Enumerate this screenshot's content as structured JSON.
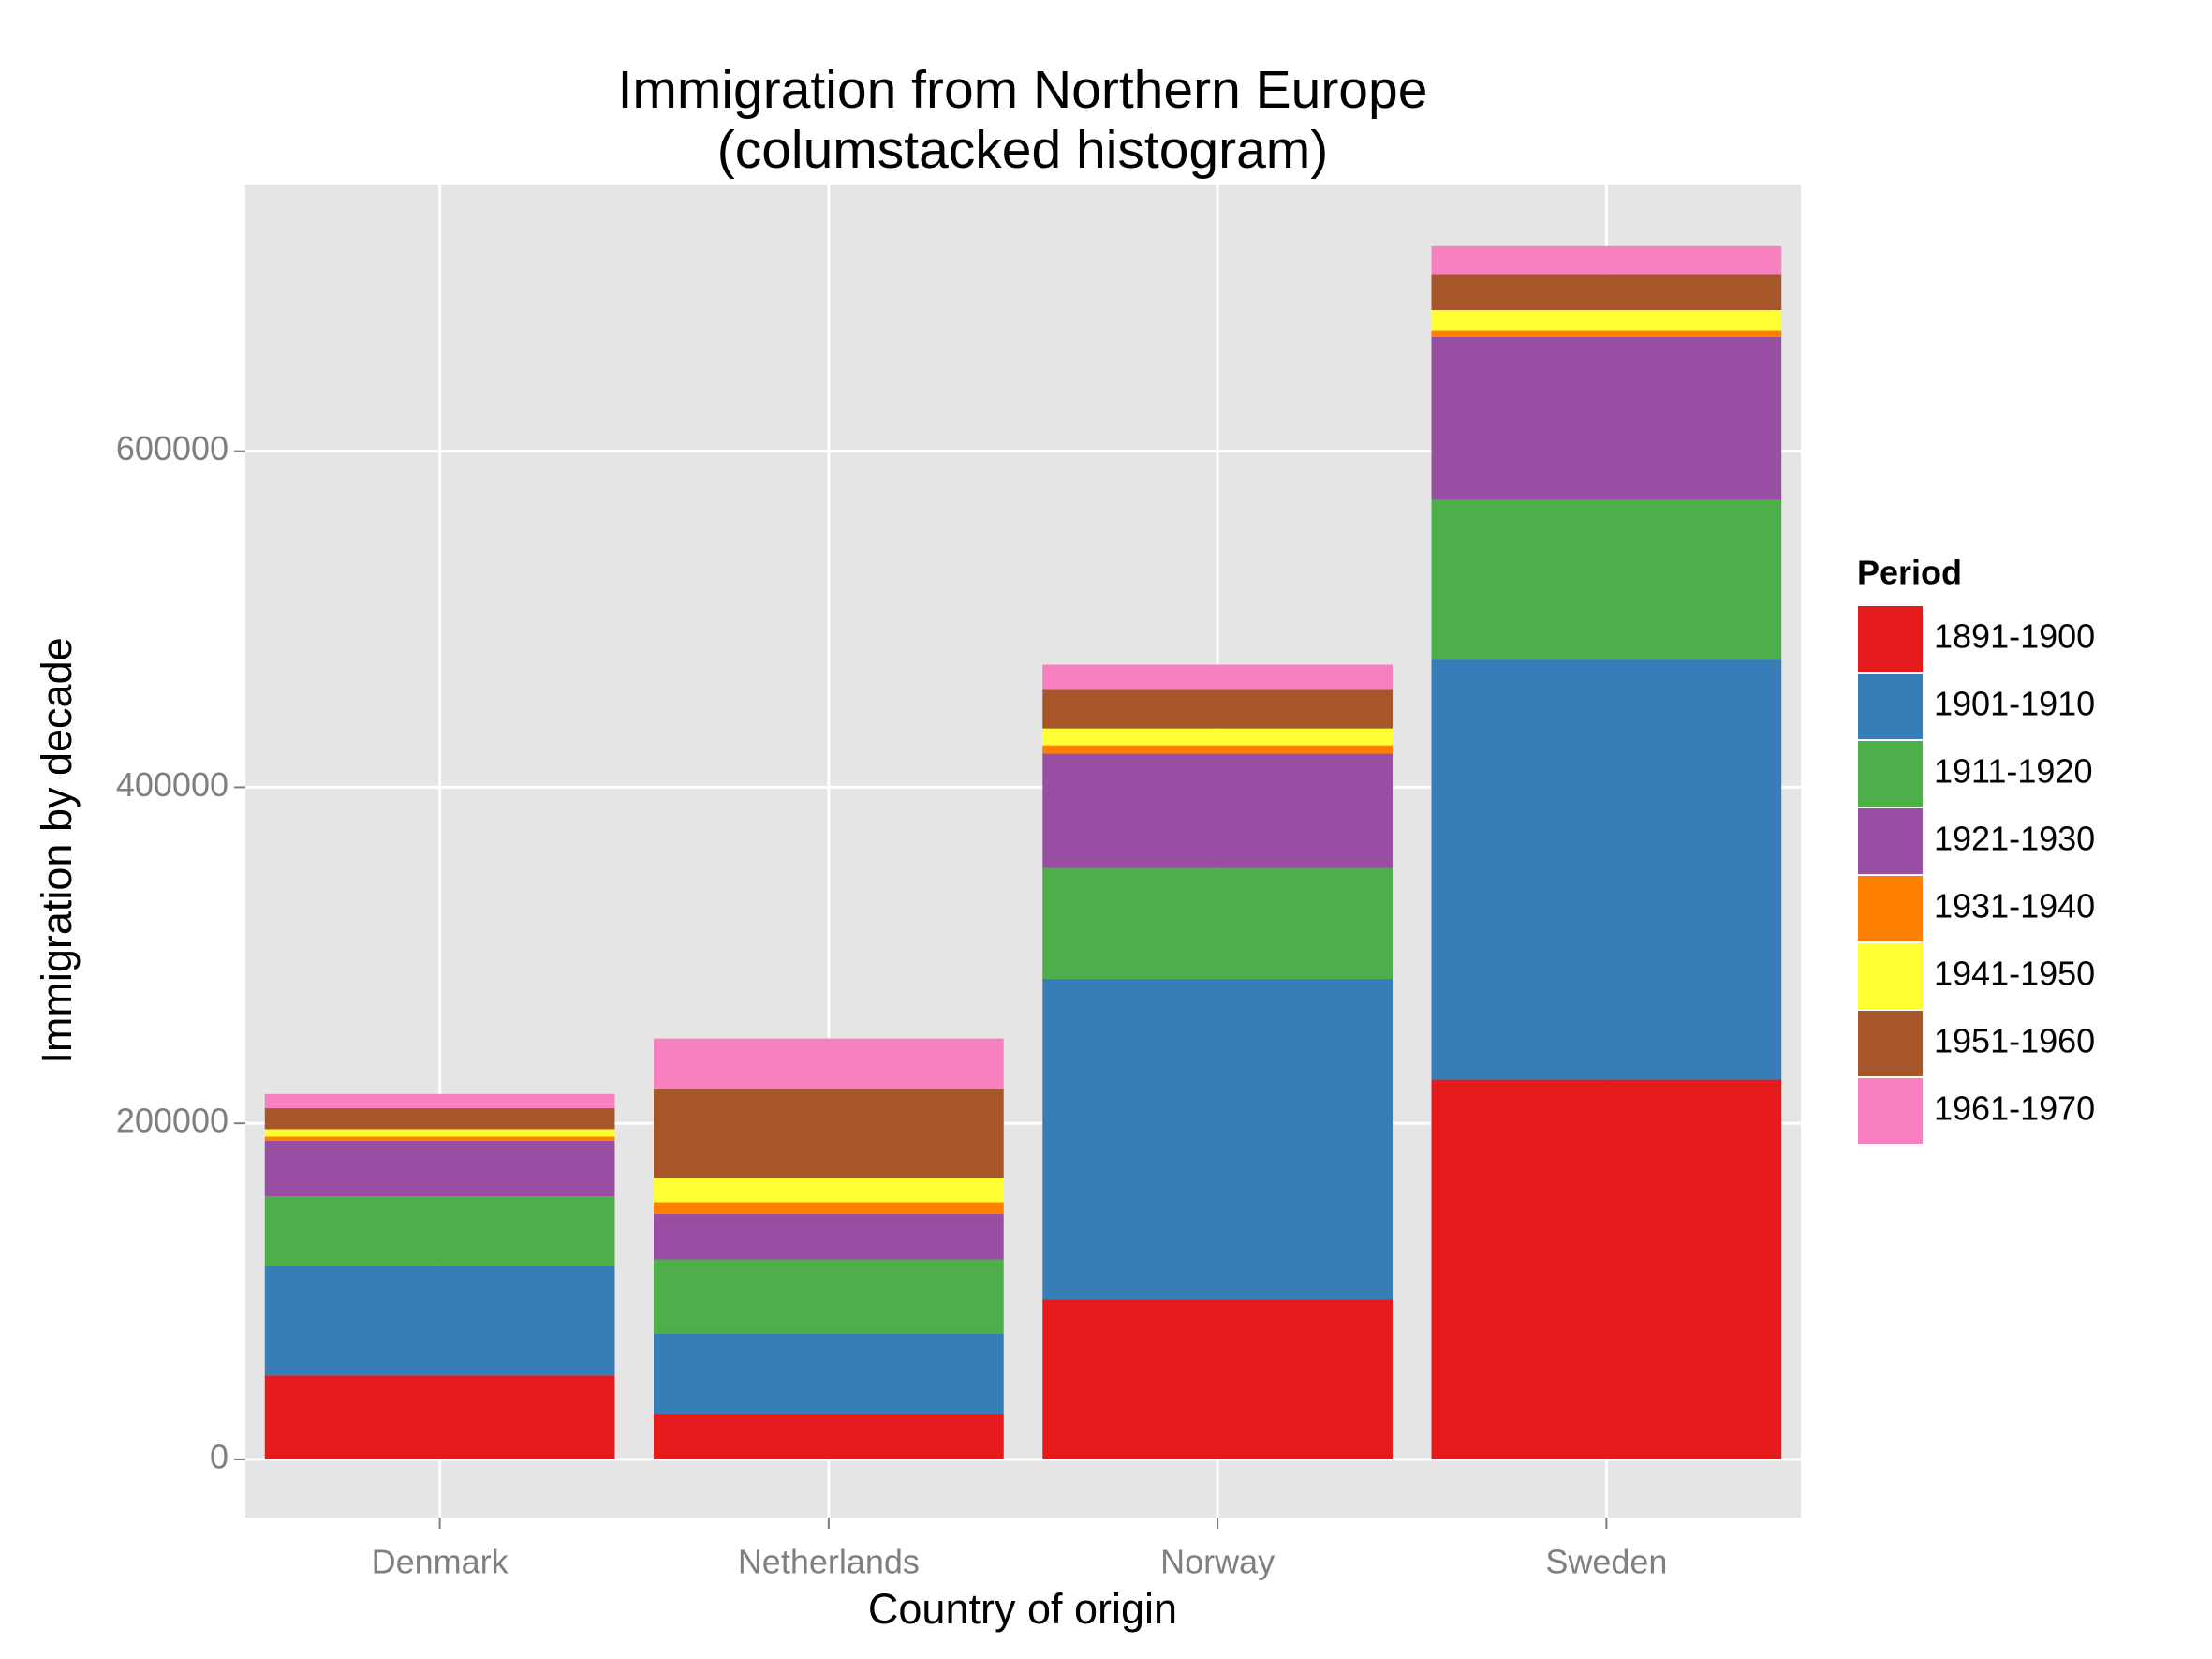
{
  "chart_data": {
    "type": "bar",
    "stacked": true,
    "title": [
      "Immigration from Northern Europe",
      "(columstacked histogram)"
    ],
    "x_label": "Country of origin",
    "y_label": "Immigration by decade",
    "legend_title": "Period",
    "legend_position": "right",
    "grid": true,
    "categories": [
      "Denmark",
      "Netherlands",
      "Norway",
      "Sweden"
    ],
    "series": [
      {
        "name": "1891-1900",
        "color": "#e41a1c",
        "values": [
          50000,
          27000,
          95000,
          226000
        ]
      },
      {
        "name": "1901-1910",
        "color": "#377eb8",
        "values": [
          65000,
          48000,
          191000,
          250000
        ]
      },
      {
        "name": "1911-1920",
        "color": "#4daf4a",
        "values": [
          41500,
          44000,
          66000,
          95000
        ]
      },
      {
        "name": "1921-1930",
        "color": "#984ea3",
        "values": [
          33000,
          27000,
          68000,
          97000
        ]
      },
      {
        "name": "1931-1940",
        "color": "#ff7f00",
        "values": [
          2500,
          7000,
          5000,
          4000
        ]
      },
      {
        "name": "1941-1950",
        "color": "#ffff33",
        "values": [
          4500,
          14500,
          10000,
          12000
        ]
      },
      {
        "name": "1951-1960",
        "color": "#a65628",
        "values": [
          12500,
          53000,
          23000,
          21000
        ]
      },
      {
        "name": "1961-1970",
        "color": "#f781bf",
        "values": [
          8500,
          30000,
          15000,
          17000
        ]
      }
    ],
    "ylim": [
      -34600,
      758700
    ],
    "yticks": [
      0,
      200000,
      400000,
      600000
    ]
  }
}
